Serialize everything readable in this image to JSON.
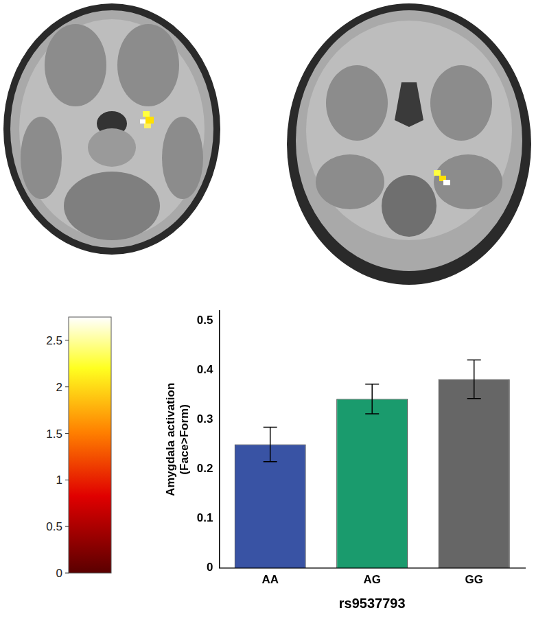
{
  "chart_data": {
    "type": "bar",
    "x_label": "rs9537793",
    "y_label": [
      "Amygdala activation",
      "(Face>Form)"
    ],
    "categories": [
      "AA",
      "AG",
      "GG"
    ],
    "values": [
      0.25,
      0.342,
      0.382
    ],
    "errors": [
      0.035,
      0.03,
      0.039
    ],
    "colors": [
      "#3953a4",
      "#1a9b6d",
      "#666666"
    ],
    "ylim": [
      0,
      0.52
    ],
    "yticks": [
      0,
      0.1,
      0.2,
      0.3,
      0.4,
      0.5
    ],
    "grid": false,
    "colorbar": {
      "range": [
        0,
        2.75
      ],
      "ticks": [
        0,
        0.5,
        1,
        1.5,
        2,
        2.5
      ]
    }
  }
}
